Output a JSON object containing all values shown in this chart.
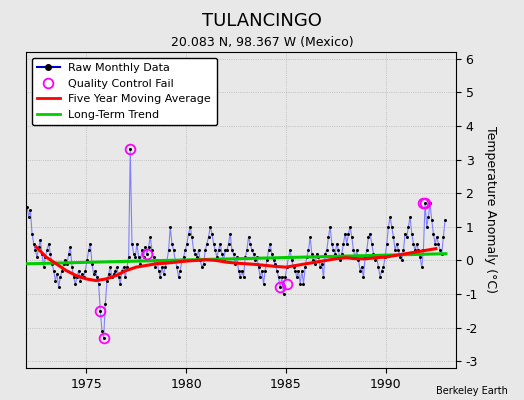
{
  "title": "TULANCINGO",
  "subtitle": "20.083 N, 98.367 W (Mexico)",
  "attribution": "Berkeley Earth",
  "ylabel": "Temperature Anomaly (°C)",
  "xlim": [
    1972.0,
    1993.5
  ],
  "ylim": [
    -3.2,
    6.2
  ],
  "yticks": [
    -3,
    -2,
    -1,
    0,
    1,
    2,
    3,
    4,
    5,
    6
  ],
  "xticks": [
    1975,
    1980,
    1985,
    1990
  ],
  "background_color": "#e8e8e8",
  "plot_background": "#e8e8e8",
  "raw_line_color": "#8080ff",
  "raw_marker_color": "#000000",
  "moving_avg_color": "#ff0000",
  "trend_color": "#00cc00",
  "qc_fail_color": "#ff00ff",
  "legend_line_color": "#0000cd",
  "title_fontsize": 13,
  "subtitle_fontsize": 9,
  "axis_fontsize": 9,
  "legend_fontsize": 8,
  "raw_monthly_data": {
    "years": [
      1972.042,
      1972.125,
      1972.208,
      1972.292,
      1972.375,
      1972.458,
      1972.542,
      1972.625,
      1972.708,
      1972.792,
      1972.875,
      1972.958,
      1973.042,
      1973.125,
      1973.208,
      1973.292,
      1973.375,
      1973.458,
      1973.542,
      1973.625,
      1973.708,
      1973.792,
      1973.875,
      1973.958,
      1974.042,
      1974.125,
      1974.208,
      1974.292,
      1974.375,
      1974.458,
      1974.542,
      1974.625,
      1974.708,
      1974.792,
      1974.875,
      1974.958,
      1975.042,
      1975.125,
      1975.208,
      1975.292,
      1975.375,
      1975.458,
      1975.542,
      1975.625,
      1975.708,
      1975.792,
      1975.875,
      1975.958,
      1976.042,
      1976.125,
      1976.208,
      1976.292,
      1976.375,
      1976.458,
      1976.542,
      1976.625,
      1976.708,
      1976.792,
      1976.875,
      1976.958,
      1977.042,
      1977.125,
      1977.208,
      1977.292,
      1977.375,
      1977.458,
      1977.542,
      1977.625,
      1977.708,
      1977.792,
      1977.875,
      1977.958,
      1978.042,
      1978.125,
      1978.208,
      1978.292,
      1978.375,
      1978.458,
      1978.542,
      1978.625,
      1978.708,
      1978.792,
      1978.875,
      1978.958,
      1979.042,
      1979.125,
      1979.208,
      1979.292,
      1979.375,
      1979.458,
      1979.542,
      1979.625,
      1979.708,
      1979.792,
      1979.875,
      1979.958,
      1980.042,
      1980.125,
      1980.208,
      1980.292,
      1980.375,
      1980.458,
      1980.542,
      1980.625,
      1980.708,
      1980.792,
      1980.875,
      1980.958,
      1981.042,
      1981.125,
      1981.208,
      1981.292,
      1981.375,
      1981.458,
      1981.542,
      1981.625,
      1981.708,
      1981.792,
      1981.875,
      1981.958,
      1982.042,
      1982.125,
      1982.208,
      1982.292,
      1982.375,
      1982.458,
      1982.542,
      1982.625,
      1982.708,
      1982.792,
      1982.875,
      1982.958,
      1983.042,
      1983.125,
      1983.208,
      1983.292,
      1983.375,
      1983.458,
      1983.542,
      1983.625,
      1983.708,
      1983.792,
      1983.875,
      1983.958,
      1984.042,
      1984.125,
      1984.208,
      1984.292,
      1984.375,
      1984.458,
      1984.542,
      1984.625,
      1984.708,
      1984.792,
      1984.875,
      1984.958,
      1985.042,
      1985.125,
      1985.208,
      1985.292,
      1985.375,
      1985.458,
      1985.542,
      1985.625,
      1985.708,
      1985.792,
      1985.875,
      1985.958,
      1986.042,
      1986.125,
      1986.208,
      1986.292,
      1986.375,
      1986.458,
      1986.542,
      1986.625,
      1986.708,
      1986.792,
      1986.875,
      1986.958,
      1987.042,
      1987.125,
      1987.208,
      1987.292,
      1987.375,
      1987.458,
      1987.542,
      1987.625,
      1987.708,
      1987.792,
      1987.875,
      1987.958,
      1988.042,
      1988.125,
      1988.208,
      1988.292,
      1988.375,
      1988.458,
      1988.542,
      1988.625,
      1988.708,
      1988.792,
      1988.875,
      1988.958,
      1989.042,
      1989.125,
      1989.208,
      1989.292,
      1989.375,
      1989.458,
      1989.542,
      1989.625,
      1989.708,
      1989.792,
      1989.875,
      1989.958,
      1990.042,
      1990.125,
      1990.208,
      1990.292,
      1990.375,
      1990.458,
      1990.542,
      1990.625,
      1990.708,
      1990.792,
      1990.875,
      1990.958,
      1991.042,
      1991.125,
      1991.208,
      1991.292,
      1991.375,
      1991.458,
      1991.542,
      1991.625,
      1991.708,
      1991.792,
      1991.875,
      1991.958,
      1992.042,
      1992.125,
      1992.208,
      1992.292,
      1992.375,
      1992.458,
      1992.542,
      1992.625,
      1992.708,
      1992.792,
      1992.875,
      1992.958
    ],
    "values": [
      1.6,
      1.3,
      1.5,
      0.8,
      0.5,
      0.3,
      0.1,
      0.4,
      0.6,
      0.2,
      -0.2,
      0.1,
      0.3,
      0.5,
      0.2,
      -0.1,
      -0.3,
      -0.6,
      -0.4,
      -0.8,
      -0.5,
      -0.3,
      -0.1,
      0.0,
      -0.1,
      0.2,
      0.4,
      -0.2,
      -0.5,
      -0.7,
      -0.5,
      -0.3,
      -0.6,
      -0.4,
      -0.5,
      -0.3,
      0.0,
      0.3,
      0.5,
      -0.1,
      -0.4,
      -0.3,
      -0.5,
      -0.7,
      -1.5,
      -2.1,
      -2.3,
      -1.3,
      -0.6,
      -0.4,
      -0.2,
      -0.5,
      -0.4,
      -0.3,
      -0.2,
      -0.5,
      -0.7,
      -0.3,
      -0.2,
      -0.5,
      -0.2,
      0.1,
      3.3,
      0.5,
      0.2,
      0.1,
      0.5,
      0.1,
      -0.1,
      0.3,
      0.1,
      0.4,
      0.2,
      0.4,
      0.7,
      0.3,
      0.1,
      -0.2,
      0.0,
      -0.3,
      -0.5,
      -0.2,
      -0.4,
      -0.2,
      0.0,
      0.3,
      1.0,
      0.5,
      0.3,
      0.0,
      -0.2,
      -0.5,
      -0.3,
      0.0,
      0.1,
      0.3,
      0.5,
      0.8,
      1.0,
      0.7,
      0.3,
      0.2,
      0.1,
      0.3,
      0.0,
      -0.2,
      -0.1,
      0.3,
      0.5,
      0.7,
      1.0,
      0.8,
      0.5,
      0.3,
      0.1,
      0.3,
      0.5,
      0.2,
      0.0,
      0.3,
      0.3,
      0.5,
      0.8,
      0.3,
      0.2,
      -0.1,
      0.1,
      -0.3,
      -0.5,
      -0.3,
      -0.5,
      0.1,
      0.3,
      0.7,
      0.5,
      0.3,
      0.2,
      0.0,
      0.1,
      -0.2,
      -0.5,
      -0.3,
      -0.7,
      -0.3,
      0.0,
      0.3,
      0.5,
      0.2,
      0.0,
      -0.1,
      -0.3,
      -0.5,
      -0.8,
      -0.5,
      -1.0,
      -0.5,
      -0.2,
      0.1,
      0.3,
      0.0,
      -0.2,
      -0.3,
      -0.5,
      -0.3,
      -0.7,
      -0.3,
      -0.7,
      -0.2,
      0.1,
      0.3,
      0.7,
      0.2,
      0.0,
      -0.1,
      0.2,
      0.1,
      -0.2,
      -0.1,
      -0.5,
      0.2,
      0.3,
      0.7,
      1.0,
      0.5,
      0.3,
      0.2,
      0.5,
      0.3,
      0.0,
      0.2,
      0.5,
      0.8,
      0.5,
      0.8,
      1.0,
      0.7,
      0.3,
      0.1,
      0.3,
      0.0,
      -0.3,
      -0.2,
      -0.5,
      0.1,
      0.3,
      0.7,
      0.8,
      0.5,
      0.2,
      0.0,
      0.1,
      -0.2,
      -0.5,
      -0.3,
      -0.2,
      0.1,
      0.5,
      1.0,
      1.3,
      1.0,
      0.7,
      0.3,
      0.5,
      0.3,
      0.1,
      0.0,
      0.3,
      0.8,
      0.7,
      1.0,
      1.3,
      0.8,
      0.5,
      0.3,
      0.5,
      0.3,
      0.1,
      -0.2,
      0.3,
      1.7,
      1.0,
      1.3,
      1.7,
      1.2,
      0.8,
      0.5,
      0.7,
      0.5,
      0.3,
      0.2,
      0.7,
      1.2
    ]
  },
  "qc_fail_points": {
    "years": [
      1977.208,
      1978.042,
      1975.708,
      1975.875,
      1984.708,
      1985.042,
      1991.875,
      1991.958
    ],
    "values": [
      3.3,
      0.2,
      -1.5,
      -2.3,
      -0.8,
      -0.7,
      1.7,
      1.7
    ]
  },
  "five_year_avg": {
    "years": [
      1972.5,
      1973.0,
      1973.5,
      1974.0,
      1974.5,
      1975.0,
      1975.5,
      1976.0,
      1976.5,
      1977.0,
      1977.5,
      1978.0,
      1978.5,
      1979.0,
      1979.5,
      1980.0,
      1980.5,
      1981.0,
      1981.5,
      1982.0,
      1982.5,
      1983.0,
      1983.5,
      1984.0,
      1984.5,
      1985.0,
      1985.5,
      1986.0,
      1986.5,
      1987.0,
      1987.5,
      1988.0,
      1988.5,
      1989.0,
      1989.5,
      1990.0,
      1990.5,
      1991.0,
      1991.5,
      1992.0,
      1992.5
    ],
    "values": [
      0.4,
      0.1,
      -0.1,
      -0.3,
      -0.45,
      -0.55,
      -0.6,
      -0.55,
      -0.45,
      -0.3,
      -0.2,
      -0.15,
      -0.1,
      -0.08,
      -0.05,
      -0.02,
      0.0,
      0.02,
      0.0,
      -0.05,
      -0.08,
      -0.1,
      -0.12,
      -0.15,
      -0.18,
      -0.2,
      -0.15,
      -0.1,
      -0.05,
      0.0,
      0.05,
      0.08,
      0.05,
      0.05,
      0.08,
      0.1,
      0.15,
      0.2,
      0.25,
      0.3,
      0.35
    ]
  },
  "long_term_trend": {
    "years": [
      1972.0,
      1993.0
    ],
    "values": [
      -0.1,
      0.2
    ]
  }
}
